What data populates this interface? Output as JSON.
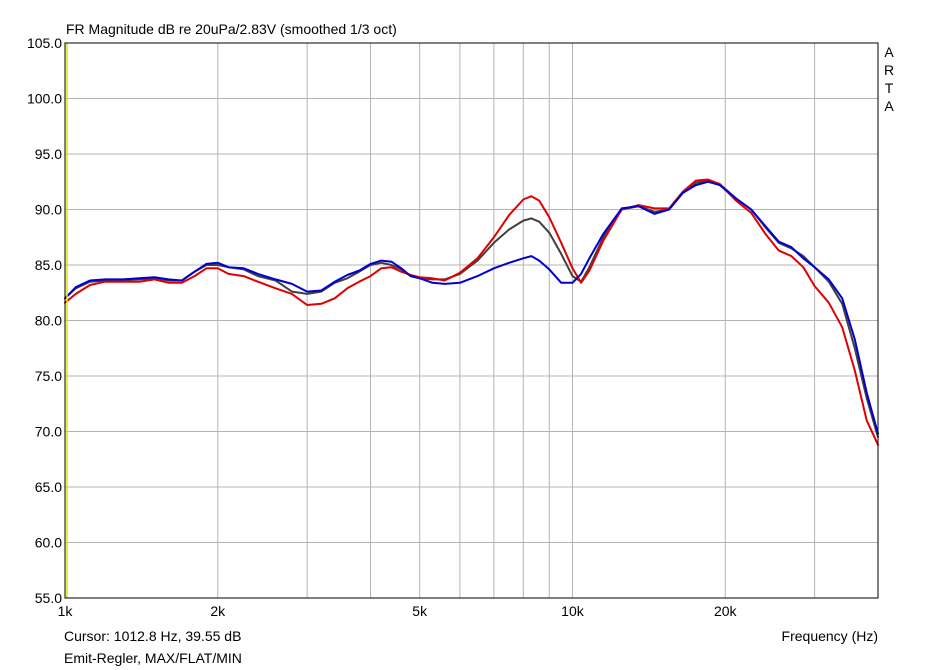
{
  "header": {
    "title": "FR Magnitude dB re 20uPa/2.83V (smoothed 1/3 oct)"
  },
  "footer": {
    "cursor": "Cursor: 1012.8 Hz, 39.55 dB",
    "info": "Emit-Regler, MAX/FLAT/MIN",
    "xlabel": "Frequency (Hz)"
  },
  "watermark": [
    "A",
    "R",
    "T",
    "A"
  ],
  "chart_data": {
    "type": "line",
    "title": "FR Magnitude dB re 20uPa/2.83V (smoothed 1/3 oct)",
    "xlabel": "Frequency (Hz)",
    "ylabel": "",
    "xscale": "log",
    "xlim": [
      1000,
      40000
    ],
    "ylim": [
      55,
      105
    ],
    "grid": true,
    "x_ticks": [
      {
        "value": 1000,
        "label": "1k"
      },
      {
        "value": 2000,
        "label": "2k"
      },
      {
        "value": 5000,
        "label": "5k"
      },
      {
        "value": 10000,
        "label": "10k"
      },
      {
        "value": 20000,
        "label": "20k"
      }
    ],
    "y_ticks": [
      55,
      60,
      65,
      70,
      75,
      80,
      85,
      90,
      95,
      100,
      105
    ],
    "y_tick_labels": [
      "55.0",
      "60.0",
      "65.0",
      "70.0",
      "75.0",
      "80.0",
      "85.0",
      "90.0",
      "95.0",
      "100.0",
      "105.0"
    ],
    "colors": {
      "grid": "#b4b4b4",
      "axis": "#000000",
      "marker": "#e6e600"
    },
    "series": [
      {
        "color": "#404040",
        "x": [
          1000,
          1050,
          1120,
          1200,
          1300,
          1400,
          1500,
          1600,
          1700,
          1800,
          1900,
          2000,
          2100,
          2250,
          2400,
          2600,
          2800,
          3000,
          3200,
          3400,
          3600,
          3800,
          4000,
          4200,
          4400,
          4600,
          4800,
          5000,
          5300,
          5600,
          6000,
          6500,
          7000,
          7500,
          8000,
          8300,
          8600,
          9000,
          9500,
          10000,
          10400,
          10800,
          11500,
          12500,
          13500,
          14500,
          15500,
          16500,
          17500,
          18500,
          19500,
          21000,
          22500,
          24000,
          25500,
          27000,
          28500,
          30000,
          32000,
          34000,
          36000,
          38000,
          40000
        ],
        "y": [
          82.0,
          82.9,
          83.5,
          83.6,
          83.6,
          83.7,
          83.8,
          83.6,
          83.6,
          84.4,
          85.0,
          85.0,
          84.8,
          84.6,
          84.0,
          83.6,
          82.6,
          82.4,
          82.6,
          83.4,
          83.8,
          84.4,
          85.0,
          85.2,
          85.0,
          84.6,
          84.0,
          83.8,
          83.7,
          83.7,
          84.2,
          85.4,
          87.0,
          88.2,
          89.0,
          89.2,
          88.9,
          87.9,
          86.0,
          84.0,
          83.5,
          84.8,
          87.5,
          90.0,
          90.3,
          89.8,
          90.0,
          91.5,
          92.4,
          92.6,
          92.3,
          91.0,
          90.0,
          88.4,
          87.0,
          86.5,
          85.8,
          84.8,
          83.5,
          81.5,
          77.5,
          73.0,
          69.5
        ]
      },
      {
        "color": "#e00000",
        "x": [
          1000,
          1050,
          1120,
          1200,
          1300,
          1400,
          1500,
          1600,
          1700,
          1800,
          1900,
          2000,
          2100,
          2250,
          2400,
          2600,
          2800,
          3000,
          3200,
          3400,
          3600,
          3800,
          4000,
          4200,
          4400,
          4600,
          4800,
          5000,
          5300,
          5600,
          6000,
          6500,
          7000,
          7500,
          8000,
          8300,
          8600,
          9000,
          9500,
          10000,
          10400,
          10800,
          11500,
          12500,
          13500,
          14500,
          15500,
          16500,
          17500,
          18500,
          19500,
          21000,
          22500,
          24000,
          25500,
          27000,
          28500,
          30000,
          32000,
          34000,
          36000,
          38000,
          40000
        ],
        "y": [
          81.6,
          82.4,
          83.2,
          83.5,
          83.5,
          83.5,
          83.7,
          83.4,
          83.4,
          84.0,
          84.7,
          84.7,
          84.2,
          84.0,
          83.5,
          82.9,
          82.4,
          81.4,
          81.5,
          82.0,
          82.9,
          83.5,
          84.0,
          84.7,
          84.8,
          84.4,
          84.1,
          83.9,
          83.8,
          83.6,
          84.3,
          85.6,
          87.5,
          89.5,
          90.9,
          91.2,
          90.8,
          89.3,
          87.0,
          84.7,
          83.4,
          84.5,
          87.2,
          90.0,
          90.4,
          90.1,
          90.1,
          91.6,
          92.6,
          92.7,
          92.3,
          90.8,
          89.7,
          87.8,
          86.3,
          85.8,
          84.8,
          83.1,
          81.6,
          79.4,
          75.5,
          71.0,
          68.8
        ]
      },
      {
        "color": "#0000d0",
        "x": [
          1000,
          1050,
          1120,
          1200,
          1300,
          1400,
          1500,
          1600,
          1700,
          1800,
          1900,
          2000,
          2100,
          2250,
          2400,
          2600,
          2800,
          3000,
          3200,
          3400,
          3600,
          3800,
          4000,
          4200,
          4400,
          4600,
          4800,
          5000,
          5300,
          5600,
          6000,
          6500,
          7000,
          7500,
          8000,
          8300,
          8600,
          9000,
          9500,
          10000,
          10400,
          10800,
          11500,
          12500,
          13500,
          14500,
          15500,
          16500,
          17500,
          18500,
          19500,
          21000,
          22500,
          24000,
          25500,
          27000,
          28500,
          30000,
          32000,
          34000,
          36000,
          38000,
          40000
        ],
        "y": [
          82.0,
          83.0,
          83.6,
          83.7,
          83.7,
          83.8,
          83.9,
          83.7,
          83.6,
          84.4,
          85.1,
          85.2,
          84.8,
          84.7,
          84.2,
          83.7,
          83.3,
          82.6,
          82.7,
          83.5,
          84.1,
          84.5,
          85.1,
          85.4,
          85.3,
          84.7,
          84.0,
          83.8,
          83.4,
          83.3,
          83.4,
          84.0,
          84.7,
          85.2,
          85.6,
          85.8,
          85.4,
          84.6,
          83.4,
          83.4,
          84.2,
          85.6,
          87.8,
          90.1,
          90.3,
          89.6,
          90.0,
          91.5,
          92.2,
          92.5,
          92.2,
          91.0,
          90.0,
          88.5,
          87.1,
          86.6,
          85.6,
          84.8,
          83.7,
          82.0,
          78.3,
          73.5,
          69.8
        ]
      }
    ]
  }
}
